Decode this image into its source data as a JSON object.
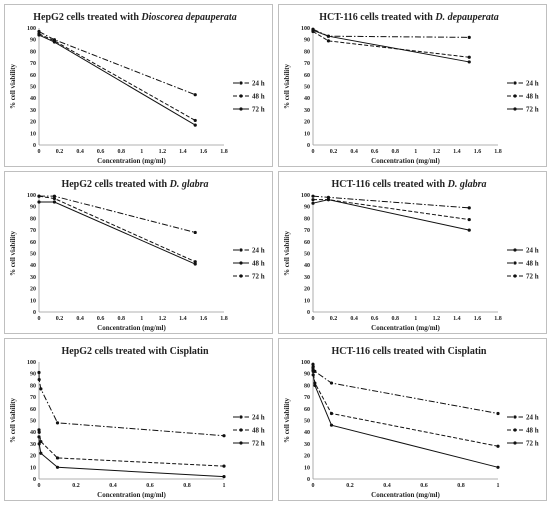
{
  "chart_data": [
    {
      "type": "line",
      "title_parts": [
        {
          "text": "HepG2 cells treated with ",
          "italic": false
        },
        {
          "text": "Dioscorea depauperata",
          "italic": true
        }
      ],
      "xlabel": "Concentration (mg/ml)",
      "ylabel": "% cell viability",
      "xlim": [
        0,
        1.8
      ],
      "xticks": [
        0,
        0.2,
        0.4,
        0.6,
        0.8,
        1,
        1.2,
        1.4,
        1.6,
        1.8
      ],
      "xtick_labels": [
        "0",
        "0.2",
        "0.4",
        "0.6",
        "0.8",
        "1",
        "1.2",
        "1.4",
        "1.6",
        "1.8"
      ],
      "ylim": [
        0,
        100
      ],
      "yticks": [
        0,
        10,
        20,
        30,
        40,
        50,
        60,
        70,
        80,
        90,
        100
      ],
      "legend_position": "right",
      "series": [
        {
          "name": "24 h",
          "style": "dashdot",
          "x": [
            0,
            0.15,
            1.52
          ],
          "y": [
            97,
            90,
            43
          ]
        },
        {
          "name": "48 h",
          "style": "dashed",
          "x": [
            0,
            0.15,
            1.52
          ],
          "y": [
            95,
            89,
            21
          ]
        },
        {
          "name": "72 h",
          "style": "solid",
          "x": [
            0,
            0.15,
            1.52
          ],
          "y": [
            94,
            88,
            17
          ]
        }
      ]
    },
    {
      "type": "line",
      "title_parts": [
        {
          "text": "HCT-116 cells treated with ",
          "italic": false
        },
        {
          "text": "D. depauperata",
          "italic": true
        }
      ],
      "xlabel": "Concentration (mg/ml)",
      "ylabel": "% cell viability",
      "xlim": [
        0,
        1.8
      ],
      "xticks": [
        0,
        0.2,
        0.4,
        0.6,
        0.8,
        1,
        1.2,
        1.4,
        1.6,
        1.8
      ],
      "xtick_labels": [
        "0",
        "0.2",
        "0.4",
        "0.6",
        "0.8",
        "1",
        "1.2",
        "1.4",
        "1.6",
        "1.8"
      ],
      "ylim": [
        0,
        100
      ],
      "yticks": [
        0,
        10,
        20,
        30,
        40,
        50,
        60,
        70,
        80,
        90,
        100
      ],
      "legend_position": "right",
      "series": [
        {
          "name": "24 h",
          "style": "dashdot",
          "x": [
            0,
            0.15,
            1.52
          ],
          "y": [
            99,
            93,
            92
          ]
        },
        {
          "name": "48 h",
          "style": "dashed",
          "x": [
            0,
            0.15,
            1.52
          ],
          "y": [
            97,
            89,
            75
          ]
        },
        {
          "name": "72 h",
          "style": "solid",
          "x": [
            0,
            0.15,
            1.52
          ],
          "y": [
            98,
            93,
            71
          ]
        }
      ]
    },
    {
      "type": "line",
      "title_parts": [
        {
          "text": "HepG2 cells treated with ",
          "italic": false
        },
        {
          "text": "D. glabra",
          "italic": true
        }
      ],
      "xlabel": "Concentration (mg/ml)",
      "ylabel": "% cell viability",
      "xlim": [
        0,
        1.8
      ],
      "xticks": [
        0,
        0.2,
        0.4,
        0.6,
        0.8,
        1,
        1.2,
        1.4,
        1.6,
        1.8
      ],
      "xtick_labels": [
        "0",
        "0.2",
        "0.4",
        "0.6",
        "0.8",
        "1",
        "1.2",
        "1.4",
        "1.6",
        "1.8"
      ],
      "ylim": [
        0,
        100
      ],
      "yticks": [
        0,
        10,
        20,
        30,
        40,
        50,
        60,
        70,
        80,
        90,
        100
      ],
      "legend_position": "right",
      "series": [
        {
          "name": "24 h",
          "style": "dashdot",
          "x": [
            0,
            0.15,
            1.52
          ],
          "y": [
            99,
            99,
            68
          ]
        },
        {
          "name": "48 h",
          "style": "solid",
          "x": [
            0,
            0.15,
            1.52
          ],
          "y": [
            94,
            94,
            41
          ]
        },
        {
          "name": "72 h",
          "style": "dashed",
          "x": [
            0,
            0.15,
            1.52
          ],
          "y": [
            99,
            97,
            43
          ]
        }
      ]
    },
    {
      "type": "line",
      "title_parts": [
        {
          "text": "HCT-116 cells treated with ",
          "italic": false
        },
        {
          "text": "D. glabra",
          "italic": true
        }
      ],
      "xlabel": "Concentration (mg/ml)",
      "ylabel": "% cell viability",
      "xlim": [
        0,
        1.8
      ],
      "xticks": [
        0,
        0.2,
        0.4,
        0.6,
        0.8,
        1,
        1.2,
        1.4,
        1.6,
        1.8
      ],
      "xtick_labels": [
        "0",
        "0.2",
        "0.4",
        "0.6",
        "0.8",
        "1",
        "1.2",
        "1.4",
        "1.6",
        "1.8"
      ],
      "ylim": [
        0,
        100
      ],
      "yticks": [
        0,
        10,
        20,
        30,
        40,
        50,
        60,
        70,
        80,
        90,
        100
      ],
      "legend_position": "right",
      "series": [
        {
          "name": "24 h",
          "style": "solid",
          "x": [
            0,
            0.15,
            1.52
          ],
          "y": [
            93,
            96,
            70
          ]
        },
        {
          "name": "48 h",
          "style": "dashdot",
          "x": [
            0,
            0.15,
            1.52
          ],
          "y": [
            99,
            98,
            89
          ]
        },
        {
          "name": "72 h",
          "style": "dashed",
          "x": [
            0,
            0.15,
            1.52
          ],
          "y": [
            96,
            96,
            79
          ]
        }
      ]
    },
    {
      "type": "line",
      "title_parts": [
        {
          "text": "HepG2 cells treated with Cisplatin",
          "italic": false
        }
      ],
      "xlabel": "Concentration (mg/ml)",
      "ylabel": "% cell viability",
      "xlim": [
        0,
        1
      ],
      "xticks": [
        0,
        0.2,
        0.4,
        0.6,
        0.8,
        1
      ],
      "xtick_labels": [
        "0",
        "0.2",
        "0.4",
        "0.6",
        "0.8",
        "1"
      ],
      "ylim": [
        0,
        100
      ],
      "yticks": [
        0,
        10,
        20,
        30,
        40,
        50,
        60,
        70,
        80,
        90,
        100
      ],
      "legend_position": "right",
      "series": [
        {
          "name": "24 h",
          "style": "dashdot",
          "x": [
            0,
            0.001,
            0.01,
            0.1,
            1
          ],
          "y": [
            91,
            85,
            77,
            48,
            37
          ]
        },
        {
          "name": "48 h",
          "style": "dashed",
          "x": [
            0,
            0.001,
            0.01,
            0.1,
            1
          ],
          "y": [
            42,
            40,
            32,
            18,
            11
          ]
        },
        {
          "name": "72 h",
          "style": "solid",
          "x": [
            0,
            0.001,
            0.01,
            0.1,
            1
          ],
          "y": [
            36,
            30,
            22,
            10,
            2
          ]
        }
      ]
    },
    {
      "type": "line",
      "title_parts": [
        {
          "text": "HCT-116 cells treated with Cisplatin",
          "italic": false
        }
      ],
      "xlabel": "Concentration (mg/ml)",
      "ylabel": "% cell viability",
      "xlim": [
        0,
        1
      ],
      "xticks": [
        0,
        0.2,
        0.4,
        0.6,
        0.8,
        1
      ],
      "xtick_labels": [
        "0",
        "0.2",
        "0.4",
        "0.6",
        "0.8",
        "1"
      ],
      "ylim": [
        0,
        100
      ],
      "yticks": [
        0,
        10,
        20,
        30,
        40,
        50,
        60,
        70,
        80,
        90,
        100
      ],
      "legend_position": "right",
      "series": [
        {
          "name": "24 h",
          "style": "dashdot",
          "x": [
            0,
            0.001,
            0.01,
            0.1,
            1
          ],
          "y": [
            98,
            96,
            92,
            82,
            56
          ]
        },
        {
          "name": "48 h",
          "style": "dashed",
          "x": [
            0,
            0.001,
            0.01,
            0.1,
            1
          ],
          "y": [
            95,
            92,
            82,
            56,
            28
          ]
        },
        {
          "name": "72 h",
          "style": "solid",
          "x": [
            0,
            0.001,
            0.01,
            0.1,
            1
          ],
          "y": [
            93,
            89,
            80,
            46,
            10
          ]
        }
      ]
    }
  ]
}
